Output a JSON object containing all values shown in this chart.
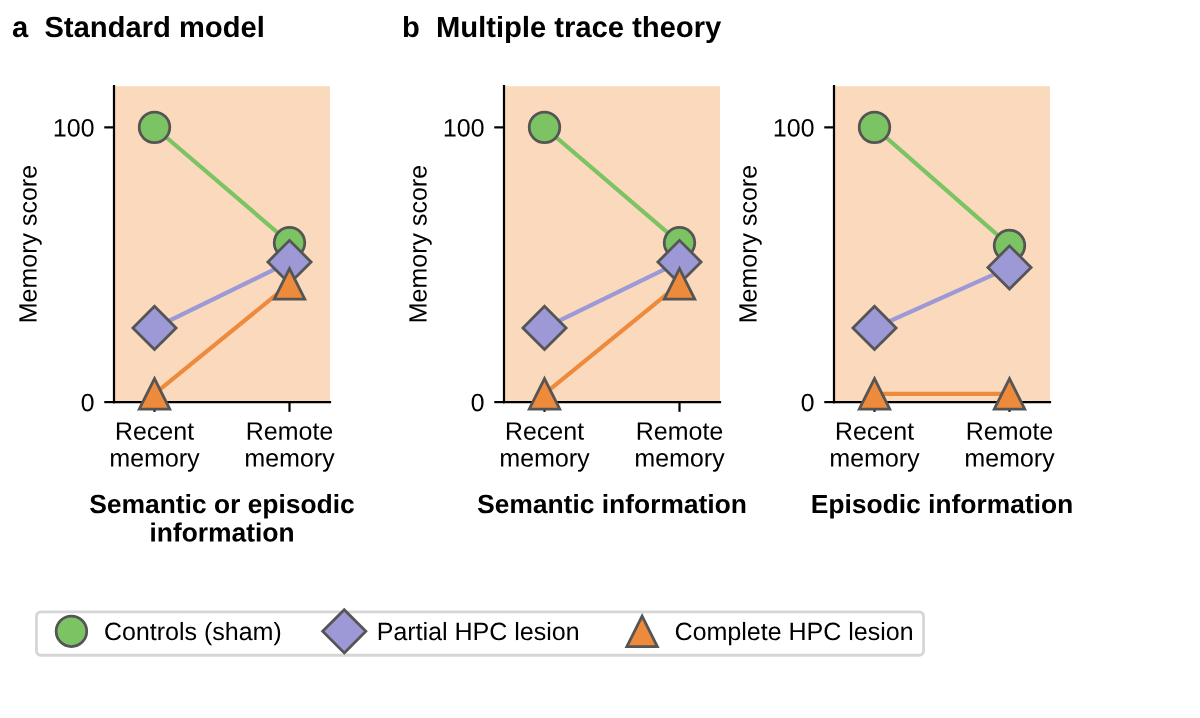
{
  "chart_data": [
    {
      "type": "line",
      "title": "Standard model",
      "annotations": [
        "a"
      ],
      "ylabel": "Memory score",
      "xlabel": "Semantic or episodic\ninformation",
      "categories": [
        "Recent\nmemory",
        "Remote\nmemory"
      ],
      "ylim": [
        0,
        115
      ],
      "yticks": [
        0,
        100
      ],
      "grid": false,
      "legend": "bottom",
      "series": [
        {
          "name": "Controls (sham)",
          "color": "#7cc463",
          "marker": "circle",
          "values": [
            100,
            58
          ]
        },
        {
          "name": "Partial HPC lesion",
          "color": "#9d98d6",
          "marker": "diamond",
          "values": [
            27,
            51
          ]
        },
        {
          "name": "Complete HPC lesion",
          "color": "#ee8a3c",
          "marker": "triangle",
          "values": [
            3,
            43
          ]
        }
      ]
    },
    {
      "type": "line",
      "title": "Multiple trace theory",
      "annotations": [
        "b"
      ],
      "ylabel": "Memory score",
      "xlabel": "Semantic information",
      "categories": [
        "Recent\nmemory",
        "Remote\nmemory"
      ],
      "ylim": [
        0,
        115
      ],
      "yticks": [
        0,
        100
      ],
      "grid": false,
      "series": [
        {
          "color": "#7cc463",
          "marker": "circle",
          "values": [
            100,
            58
          ]
        },
        {
          "color": "#9d98d6",
          "marker": "diamond",
          "values": [
            27,
            51
          ]
        },
        {
          "color": "#ee8a3c",
          "marker": "triangle",
          "values": [
            3,
            43
          ]
        }
      ]
    },
    {
      "type": "line",
      "ylabel": "Memory score",
      "xlabel": "Episodic information",
      "categories": [
        "Recent\nmemory",
        "Remote\nmemory"
      ],
      "ylim": [
        0,
        115
      ],
      "yticks": [
        0,
        100
      ],
      "grid": false,
      "series": [
        {
          "color": "#7cc463",
          "marker": "circle",
          "values": [
            100,
            57
          ]
        },
        {
          "color": "#9d98d6",
          "marker": "diamond",
          "values": [
            27,
            49
          ]
        },
        {
          "color": "#ee8a3c",
          "marker": "triangle",
          "values": [
            3,
            3
          ]
        }
      ]
    }
  ]
}
